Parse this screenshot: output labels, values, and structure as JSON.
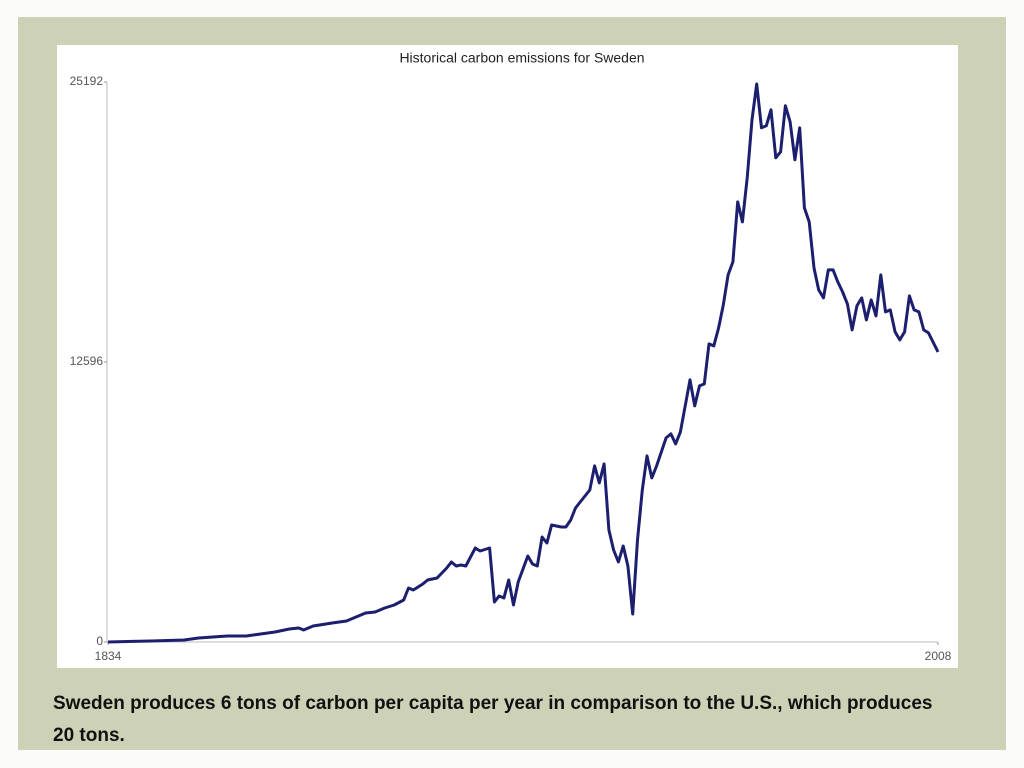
{
  "chart_data": {
    "type": "line",
    "title": "Historical carbon emissions for Sweden",
    "caption": "Sweden produces 6 tons of carbon per capita per year in comparison to the U.S., which produces 20 tons.",
    "x": [
      1834,
      1843,
      1850,
      1853,
      1856,
      1859,
      1863,
      1866,
      1869,
      1872,
      1874,
      1875,
      1877,
      1881,
      1884,
      1886,
      1888,
      1890,
      1892,
      1894,
      1896,
      1897,
      1898,
      1900,
      1901,
      1903,
      1905,
      1906,
      1907,
      1908,
      1909,
      1911,
      1912,
      1914,
      1915,
      1916,
      1917,
      1918,
      1919,
      1920,
      1922,
      1923,
      1924,
      1925,
      1926,
      1927,
      1929,
      1930,
      1931,
      1932,
      1933,
      1935,
      1936,
      1937,
      1938,
      1939,
      1940,
      1941,
      1942,
      1943,
      1944,
      1945,
      1946,
      1947,
      1948,
      1949,
      1951,
      1952,
      1953,
      1954,
      1955,
      1956,
      1957,
      1958,
      1959,
      1960,
      1961,
      1962,
      1963,
      1964,
      1965,
      1966,
      1967,
      1968,
      1969,
      1970,
      1971,
      1972,
      1973,
      1974,
      1975,
      1976,
      1977,
      1978,
      1979,
      1980,
      1981,
      1982,
      1983,
      1984,
      1985,
      1986,
      1987,
      1988,
      1989,
      1990,
      1991,
      1992,
      1993,
      1994,
      1995,
      1996,
      1997,
      1998,
      1999,
      2000,
      2001,
      2002,
      2003,
      2004,
      2005,
      2006,
      2008
    ],
    "values": [
      0,
      45,
      90,
      180,
      225,
      270,
      270,
      360,
      450,
      585,
      630,
      540,
      720,
      855,
      945,
      1125,
      1305,
      1350,
      1530,
      1665,
      1890,
      2430,
      2340,
      2610,
      2790,
      2880,
      3330,
      3600,
      3420,
      3465,
      3420,
      4230,
      4095,
      4230,
      1800,
      2070,
      1980,
      2790,
      1665,
      2700,
      3870,
      3510,
      3420,
      4725,
      4455,
      5265,
      5175,
      5175,
      5490,
      6030,
      6300,
      6840,
      7920,
      7155,
      8010,
      5040,
      4140,
      3600,
      4320,
      3420,
      1260,
      4590,
      6840,
      8370,
      7380,
      7920,
      9180,
      9360,
      8910,
      9450,
      10620,
      11790,
      10620,
      11520,
      11610,
      13410,
      13320,
      14130,
      15165,
      16515,
      17100,
      19800,
      18900,
      20880,
      23490,
      25100,
      23130,
      23220,
      23940,
      21780,
      22050,
      24120,
      23400,
      21690,
      23130,
      19530,
      18900,
      16830,
      15840,
      15480,
      16740,
      16740,
      16200,
      15750,
      15210,
      14040,
      15120,
      15480,
      14490,
      15390,
      14670,
      16515,
      14850,
      14940,
      13950,
      13590,
      13950,
      15570,
      14940,
      14850,
      14040,
      13905,
      13050
    ],
    "color": "#1c1f6e",
    "xlim": [
      1834,
      2008
    ],
    "xticks": [
      1834,
      2008
    ],
    "ylim": [
      0,
      25192
    ],
    "yticks": [
      0,
      12596,
      25192
    ],
    "grid": false
  }
}
